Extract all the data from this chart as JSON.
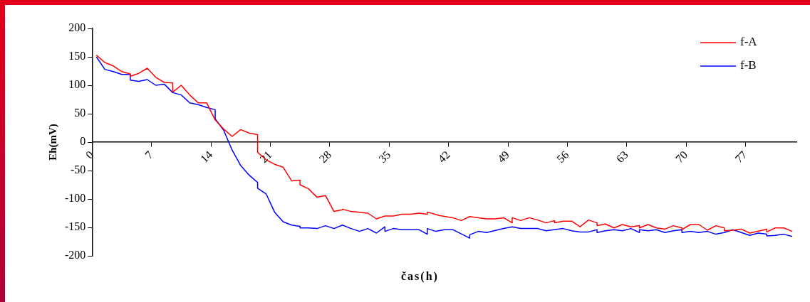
{
  "chart_data": {
    "type": "line",
    "xlabel": "čas(h)",
    "ylabel": "Eh(mV)",
    "xlim": [
      0,
      83
    ],
    "xticks": [
      0,
      7,
      14,
      21,
      28,
      35,
      42,
      49,
      56,
      63,
      70,
      77
    ],
    "ylim": [
      -200,
      200
    ],
    "yticks": [
      -200,
      -150,
      -100,
      -50,
      0,
      50,
      100,
      150,
      200
    ],
    "grid": false,
    "legend": "top right",
    "series": [
      {
        "name": "f-A",
        "color": "#ff0000",
        "x": [
          0.5,
          1.5,
          2.5,
          3.5,
          4.5,
          4.5,
          5.5,
          6.5,
          7.5,
          8.5,
          9.5,
          9.5,
          10.5,
          11.5,
          12.5,
          13.5,
          14.5,
          15.5,
          16.5,
          17.5,
          18.5,
          19.5,
          19.5,
          20.5,
          21.5,
          22.5,
          23.5,
          24.5,
          24.5,
          25.5,
          26.5,
          27.5,
          28.5,
          29.5,
          29.5,
          30.5,
          32.5,
          33.5,
          34.5,
          35.5,
          36.5,
          37.5,
          38.5,
          39.5,
          39.5,
          40.9,
          42.5,
          43.5,
          44.5,
          45.5,
          46.5,
          47.5,
          48.5,
          49.5,
          49.5,
          50.5,
          51.5,
          52.5,
          53.5,
          54.5,
          54.5,
          55.5,
          56.5,
          57.5,
          58.5,
          59.5,
          59.5,
          60.5,
          61.5,
          62.5,
          63.5,
          64.5,
          64.5,
          65.5,
          66.5,
          67.5,
          68.5,
          69.5,
          69.5,
          70.5,
          71.5,
          72.5,
          73.5,
          74.5,
          74.5,
          75.5,
          76.5,
          77.5,
          79.5,
          79.5,
          80.5,
          81.5,
          82.5
        ],
        "values": [
          153,
          140,
          134,
          124,
          120,
          116,
          121,
          130,
          114,
          105,
          104,
          88,
          100,
          83,
          69,
          69,
          39,
          23,
          10,
          22,
          16,
          13,
          -18,
          -31,
          -39,
          -44,
          -68,
          -67,
          -75,
          -82,
          -97,
          -94,
          -122,
          -119,
          -118,
          -122,
          -125,
          -135,
          -130,
          -130,
          -127,
          -127,
          -125,
          -127,
          -123,
          -129,
          -133,
          -138,
          -131,
          -133,
          -135,
          -135,
          -133,
          -142,
          -133,
          -138,
          -133,
          -137,
          -142,
          -138,
          -142,
          -139,
          -139,
          -149,
          -137,
          -142,
          -147,
          -144,
          -151,
          -145,
          -149,
          -147,
          -151,
          -145,
          -151,
          -153,
          -147,
          -151,
          -154,
          -145,
          -145,
          -155,
          -147,
          -151,
          -156,
          -155,
          -153,
          -160,
          -153,
          -158,
          -151,
          -151,
          -157
        ]
      },
      {
        "name": "f-B",
        "color": "#0000ff",
        "x": [
          0.5,
          1.5,
          2.5,
          3.5,
          4.5,
          4.5,
          5.5,
          6.5,
          7.5,
          8.5,
          9.5,
          10.5,
          11.5,
          12.5,
          13.5,
          14.5,
          14.5,
          15.5,
          16.5,
          17.5,
          18.5,
          19.5,
          19.5,
          20.5,
          21.5,
          22.5,
          23.5,
          24.5,
          24.5,
          25.5,
          26.5,
          27.5,
          28.5,
          29.5,
          30.5,
          31.5,
          32.5,
          33.5,
          34.5,
          34.5,
          35.5,
          36.5,
          38.5,
          39.5,
          39.5,
          40.5,
          41.5,
          42.5,
          44.5,
          44.5,
          45.5,
          46.5,
          48.5,
          49.5,
          50.5,
          52.5,
          53.5,
          55.5,
          56.5,
          57.5,
          58.5,
          59.5,
          59.5,
          60.5,
          61.5,
          62.5,
          63.5,
          64.5,
          64.5,
          65.5,
          66.5,
          67.5,
          68.5,
          69.5,
          69.5,
          70.5,
          71.5,
          72.5,
          73.5,
          74.5,
          75.5,
          76.5,
          77.5,
          78.5,
          79.5,
          79.5,
          80.5,
          81.5,
          82.5
        ],
        "values": [
          150,
          128,
          124,
          119,
          119,
          109,
          107,
          110,
          100,
          102,
          87,
          83,
          69,
          66,
          61,
          57,
          41,
          21,
          -14,
          -41,
          -58,
          -71,
          -81,
          -91,
          -123,
          -140,
          -146,
          -148,
          -151,
          -151,
          -152,
          -147,
          -152,
          -146,
          -152,
          -157,
          -152,
          -160,
          -149,
          -157,
          -152,
          -154,
          -154,
          -162,
          -152,
          -157,
          -154,
          -154,
          -169,
          -163,
          -157,
          -159,
          -152,
          -149,
          -152,
          -152,
          -156,
          -152,
          -156,
          -158,
          -158,
          -154,
          -159,
          -156,
          -154,
          -156,
          -152,
          -159,
          -154,
          -156,
          -154,
          -159,
          -156,
          -154,
          -159,
          -157,
          -159,
          -157,
          -162,
          -159,
          -154,
          -159,
          -164,
          -160,
          -162,
          -165,
          -164,
          -162,
          -166
        ]
      }
    ]
  }
}
